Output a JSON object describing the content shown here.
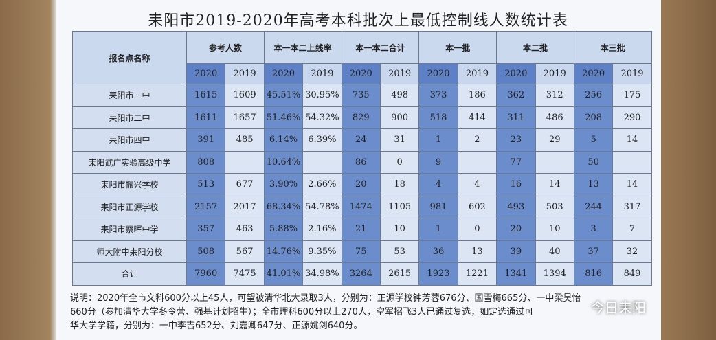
{
  "title": "耒阳市2019-2020年高考本科批次上最低控制线人数统计表",
  "table": {
    "corner": "报名点名称",
    "groups": [
      "参考人数",
      "本一本二上线率",
      "本一本二合计",
      "本一批",
      "本二批",
      "本三批"
    ],
    "years": [
      "2020",
      "2019"
    ],
    "rows": [
      [
        "耒阳市一中",
        1615,
        1609,
        "45.51%",
        "30.95%",
        735,
        498,
        373,
        186,
        362,
        312,
        256,
        175
      ],
      [
        "耒阳市二中",
        1611,
        1657,
        "51.46%",
        "54.32%",
        829,
        900,
        518,
        414,
        311,
        486,
        208,
        290
      ],
      [
        "耒阳市四中",
        391,
        485,
        "6.14%",
        "6.39%",
        24,
        31,
        1,
        2,
        23,
        29,
        5,
        14
      ],
      [
        "耒阳武广实验高级中学",
        808,
        null,
        "10.64%",
        null,
        86,
        0,
        9,
        null,
        77,
        null,
        50,
        null
      ],
      [
        "耒阳市振兴学校",
        513,
        677,
        "3.90%",
        "2.66%",
        20,
        18,
        4,
        4,
        16,
        14,
        13,
        14
      ],
      [
        "耒阳市正源学校",
        2157,
        2017,
        "68.34%",
        "54.78%",
        1474,
        1105,
        981,
        602,
        493,
        503,
        244,
        317
      ],
      [
        "耒阳市蔡晖中学",
        357,
        463,
        "5.88%",
        "2.16%",
        21,
        10,
        1,
        0,
        20,
        10,
        3,
        7
      ],
      [
        "师大附中耒阳分校",
        508,
        567,
        "14.76%",
        "9.35%",
        75,
        53,
        36,
        13,
        39,
        40,
        37,
        32
      ],
      [
        "合计",
        7960,
        7475,
        "41.01%",
        "34.98%",
        3264,
        2615,
        1923,
        1221,
        1341,
        1394,
        816,
        849
      ]
    ]
  },
  "note": [
    "说明：2020年全市文科600分以上45人，可望被清华北大录取3人，分别为：正源学校钟芳蓉676分、国雪梅665分、一中梁昊怡",
    "660分（参加清华大学冬令营、强基计划招生）；全市理科600分以上270人，空军招飞3人已通过复选，如定选通过可",
    "华大学学籍，分别为：一中李吉652分、刘嘉卿647分、正源姚剑640分。"
  ],
  "watermark": "今日耒阳"
}
